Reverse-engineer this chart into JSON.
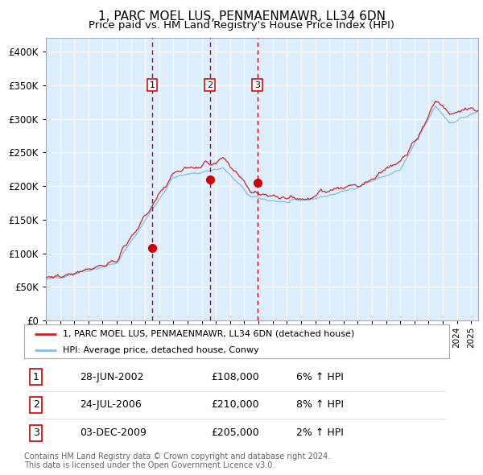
{
  "title": "1, PARC MOEL LUS, PENMAENMAWR, LL34 6DN",
  "subtitle": "Price paid vs. HM Land Registry's House Price Index (HPI)",
  "legend_line1": "1, PARC MOEL LUS, PENMAENMAWR, LL34 6DN (detached house)",
  "legend_line2": "HPI: Average price, detached house, Conwy",
  "transactions": [
    {
      "num": 1,
      "date": "28-JUN-2002",
      "price": 108000,
      "pct": "6%",
      "dir": "↑"
    },
    {
      "num": 2,
      "date": "24-JUL-2006",
      "price": 210000,
      "pct": "8%",
      "dir": "↑"
    },
    {
      "num": 3,
      "date": "03-DEC-2009",
      "price": 205000,
      "pct": "2%",
      "dir": "↑"
    }
  ],
  "transaction_dates_decimal": [
    2002.49,
    2006.56,
    2009.92
  ],
  "transaction_prices": [
    108000,
    210000,
    205000
  ],
  "vline_color": "#cc0000",
  "marker_color": "#cc0000",
  "line_color_red": "#cc2222",
  "line_color_blue": "#88bbdd",
  "plot_bg": "#ddeeff",
  "grid_color": "#ffffff",
  "footer": "Contains HM Land Registry data © Crown copyright and database right 2024.\nThis data is licensed under the Open Government Licence v3.0.",
  "ylim": [
    0,
    420000
  ],
  "yticks": [
    0,
    50000,
    100000,
    150000,
    200000,
    250000,
    300000,
    350000,
    400000
  ],
  "xlim_start": 1995.0,
  "xlim_end": 2025.5
}
